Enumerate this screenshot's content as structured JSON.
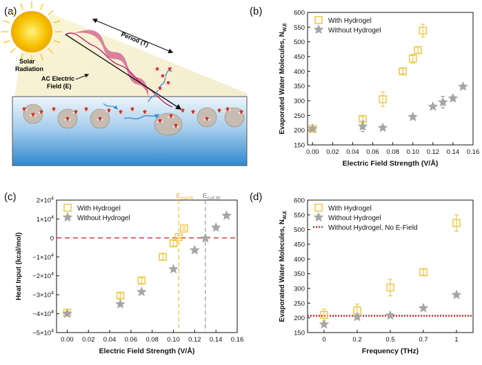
{
  "panel_a": {
    "label": "(a)",
    "solar_label_1": "Solar",
    "solar_label_2": "Radiation",
    "period_label": "Period (T)",
    "field_label_1": "AC Electric",
    "field_label_2": "Field (E)",
    "colors": {
      "sun": "#f6c200",
      "wave": "#c0246e",
      "water_top": "#cfe3f2",
      "water_bottom": "#2e8ad0",
      "beam": "#f7efc7"
    },
    "icons": [
      "sun-icon",
      "wave-icon",
      "water-molecule-icon",
      "arrow-icon"
    ]
  },
  "chart_data": [
    {
      "panel": "(b)",
      "type": "scatter",
      "xlabel": "Electric Field Strength (V/Å)",
      "ylabel": "Evaporated Water Molecules, N",
      "ylabel_sub": "W,E",
      "xlim": [
        -0.005,
        0.16
      ],
      "ylim": [
        150,
        600
      ],
      "x_ticks": [
        0.0,
        0.02,
        0.04,
        0.06,
        0.08,
        0.1,
        0.12,
        0.14,
        0.16
      ],
      "x_tick_labels": [
        "0.00",
        "0.02",
        "0.04",
        "0.06",
        "0.08",
        "0.10",
        "0.12",
        "0.14",
        "0.16"
      ],
      "y_ticks": [
        150,
        200,
        250,
        300,
        350,
        400,
        450,
        500,
        550,
        600
      ],
      "y_tick_labels": [
        "150",
        "200",
        "250",
        "300",
        "350",
        "400",
        "450",
        "500",
        "550",
        "600"
      ],
      "legend_position": "top-left",
      "series": [
        {
          "name": "With Hydrogel",
          "marker": "square",
          "color": "#f2c94c",
          "x": [
            0.0,
            0.05,
            0.07,
            0.09,
            0.1,
            0.105,
            0.11
          ],
          "y": [
            205,
            238,
            305,
            400,
            443,
            472,
            538
          ],
          "err": [
            6,
            8,
            25,
            8,
            15,
            10,
            22
          ]
        },
        {
          "name": "Without Hydrogel",
          "marker": "star",
          "color": "#a6a6a6",
          "x": [
            0.0,
            0.05,
            0.07,
            0.1,
            0.12,
            0.13,
            0.14,
            0.15
          ],
          "y": [
            205,
            213,
            208,
            245,
            280,
            295,
            308,
            348
          ],
          "err": [
            5,
            18,
            6,
            5,
            5,
            20,
            8,
            5
          ]
        }
      ]
    },
    {
      "panel": "(c)",
      "type": "scatter",
      "xlabel": "Electric Field Strength (V/Å)",
      "ylabel": "Heat Input (kcal/mol)",
      "xlim": [
        -0.01,
        0.16
      ],
      "ylim": [
        -50000,
        20000
      ],
      "x_ticks": [
        0.0,
        0.02,
        0.04,
        0.06,
        0.08,
        0.1,
        0.12,
        0.14,
        0.16
      ],
      "x_tick_labels": [
        "0.00",
        "0.02",
        "0.04",
        "0.06",
        "0.08",
        "0.10",
        "0.12",
        "0.14",
        "0.16"
      ],
      "y_ticks": [
        -50000,
        -40000,
        -30000,
        -20000,
        -10000,
        0,
        10000,
        20000
      ],
      "y_tick_labels": [
        {
          "m": "−5×10",
          "e": "4"
        },
        {
          "m": "−4×10",
          "e": "4"
        },
        {
          "m": "−3×10",
          "e": "4"
        },
        {
          "m": "−2×10",
          "e": "4"
        },
        {
          "m": "−1×10",
          "e": "4"
        },
        {
          "m": "0",
          "e": ""
        },
        {
          "m": "1×10",
          "e": "4"
        },
        {
          "m": "2×10",
          "e": "4"
        }
      ],
      "legend_position": "top-left",
      "annotations": [
        {
          "text": "E",
          "sub": "cut,H",
          "x": 0.105,
          "color": "#f2c94c"
        },
        {
          "text": "E",
          "sub": "cut,W",
          "x": 0.13,
          "color": "#a6a6a6"
        }
      ],
      "hline": {
        "y": 0,
        "color": "#d62728",
        "style": "dashed"
      },
      "series": [
        {
          "name": "With Hydrogel",
          "marker": "square",
          "color": "#f2c94c",
          "x": [
            0.0,
            0.05,
            0.07,
            0.09,
            0.1,
            0.105,
            0.11
          ],
          "y": [
            -39500,
            -30500,
            -22500,
            -10000,
            -2800,
            500,
            5000
          ],
          "err": [
            800,
            1200,
            1500,
            1500,
            1500,
            800,
            800
          ]
        },
        {
          "name": "Without Hydrogel",
          "marker": "star",
          "color": "#a6a6a6",
          "x": [
            0.0,
            0.05,
            0.07,
            0.1,
            0.12,
            0.13,
            0.14,
            0.15
          ],
          "y": [
            -40000,
            -35000,
            -28500,
            -16500,
            -6500,
            -200,
            5500,
            11800
          ],
          "err": [
            800,
            800,
            800,
            800,
            800,
            800,
            800,
            800
          ]
        }
      ]
    },
    {
      "panel": "(d)",
      "type": "scatter",
      "xlabel": "Frequency (THz)",
      "ylabel": "Evaporated Water Molecules, N",
      "ylabel_sub": "W,E",
      "xlim": [
        -0.5,
        4.5
      ],
      "ylim": [
        150,
        600
      ],
      "x_ticks": [
        0,
        1,
        2,
        3,
        4
      ],
      "x_tick_labels": [
        "0",
        "0.2",
        "0.5",
        "0.7",
        "1"
      ],
      "y_ticks": [
        150,
        200,
        250,
        300,
        350,
        400,
        450,
        500,
        550,
        600
      ],
      "y_tick_labels": [
        "150",
        "200",
        "250",
        "300",
        "350",
        "400",
        "450",
        "500",
        "550",
        "600"
      ],
      "legend_position": "top-left",
      "hline": {
        "y": 207,
        "name": "Without Hydrogel, No E-Field",
        "color": "#d62728",
        "style": "dotted"
      },
      "series": [
        {
          "name": "With Hydrogel",
          "marker": "square",
          "color": "#f2c94c",
          "x": [
            0,
            1,
            2,
            3,
            4
          ],
          "y": [
            210,
            225,
            303,
            355,
            522
          ],
          "err": [
            20,
            22,
            28,
            10,
            28
          ]
        },
        {
          "name": "Without Hydrogel",
          "marker": "star",
          "color": "#a6a6a6",
          "x": [
            0,
            1,
            2,
            3,
            4
          ],
          "y": [
            178,
            203,
            208,
            233,
            278
          ],
          "err": [
            5,
            5,
            5,
            5,
            5
          ]
        }
      ]
    }
  ]
}
